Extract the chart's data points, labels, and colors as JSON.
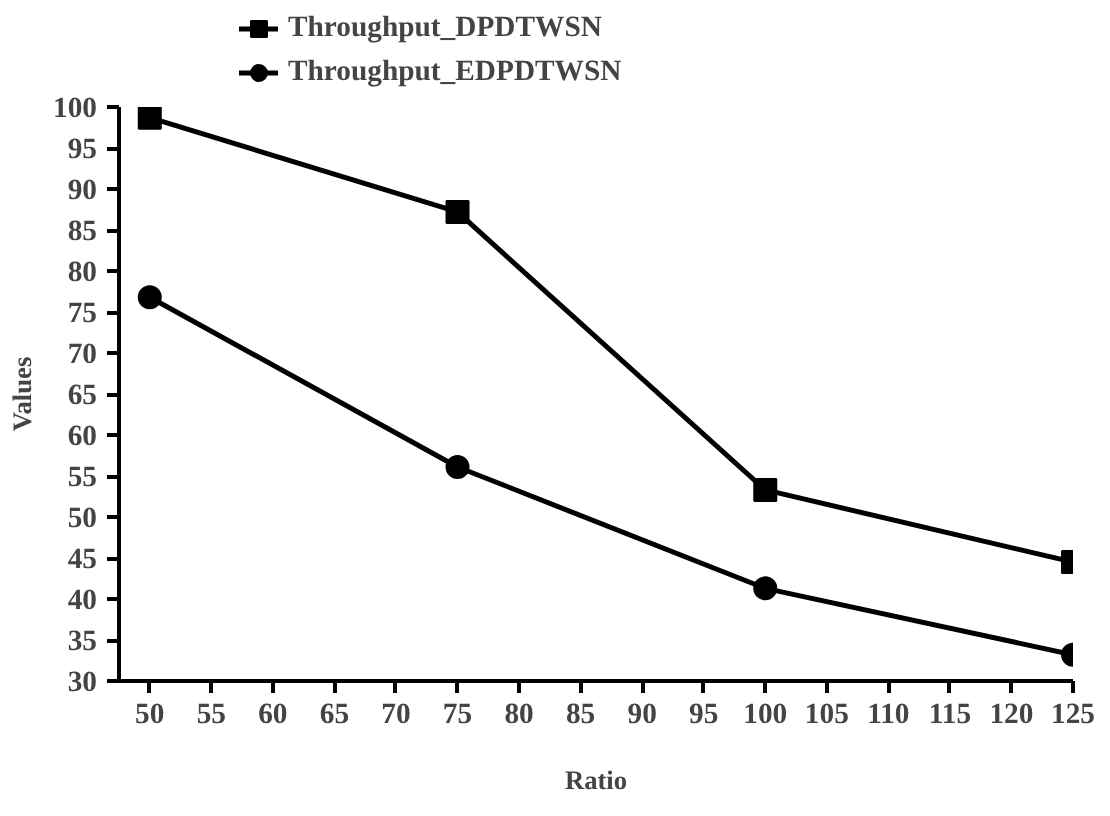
{
  "chart_data": {
    "type": "line",
    "xlabel": "Ratio",
    "ylabel": "Values",
    "x": [
      50,
      75,
      100,
      125
    ],
    "series": [
      {
        "name": "Throughput_DPDTWSN",
        "color": "#000000",
        "marker": "square",
        "values": [
          98.7,
          87.2,
          53.3,
          44.5
        ]
      },
      {
        "name": "Throughput_EDPDTWSN",
        "color": "#000000",
        "marker": "circle",
        "values": [
          76.8,
          56.1,
          41.3,
          33.2
        ]
      }
    ],
    "xlim": [
      47.5,
      125
    ],
    "xticks": [
      50,
      55,
      60,
      65,
      70,
      75,
      80,
      85,
      90,
      95,
      100,
      105,
      110,
      115,
      120,
      125
    ],
    "ylim": [
      30,
      100
    ],
    "yticks": [
      30,
      35,
      40,
      45,
      50,
      55,
      60,
      65,
      70,
      75,
      80,
      85,
      90,
      95,
      100
    ],
    "grid": false,
    "legend": "top left",
    "line_style": "solid"
  }
}
